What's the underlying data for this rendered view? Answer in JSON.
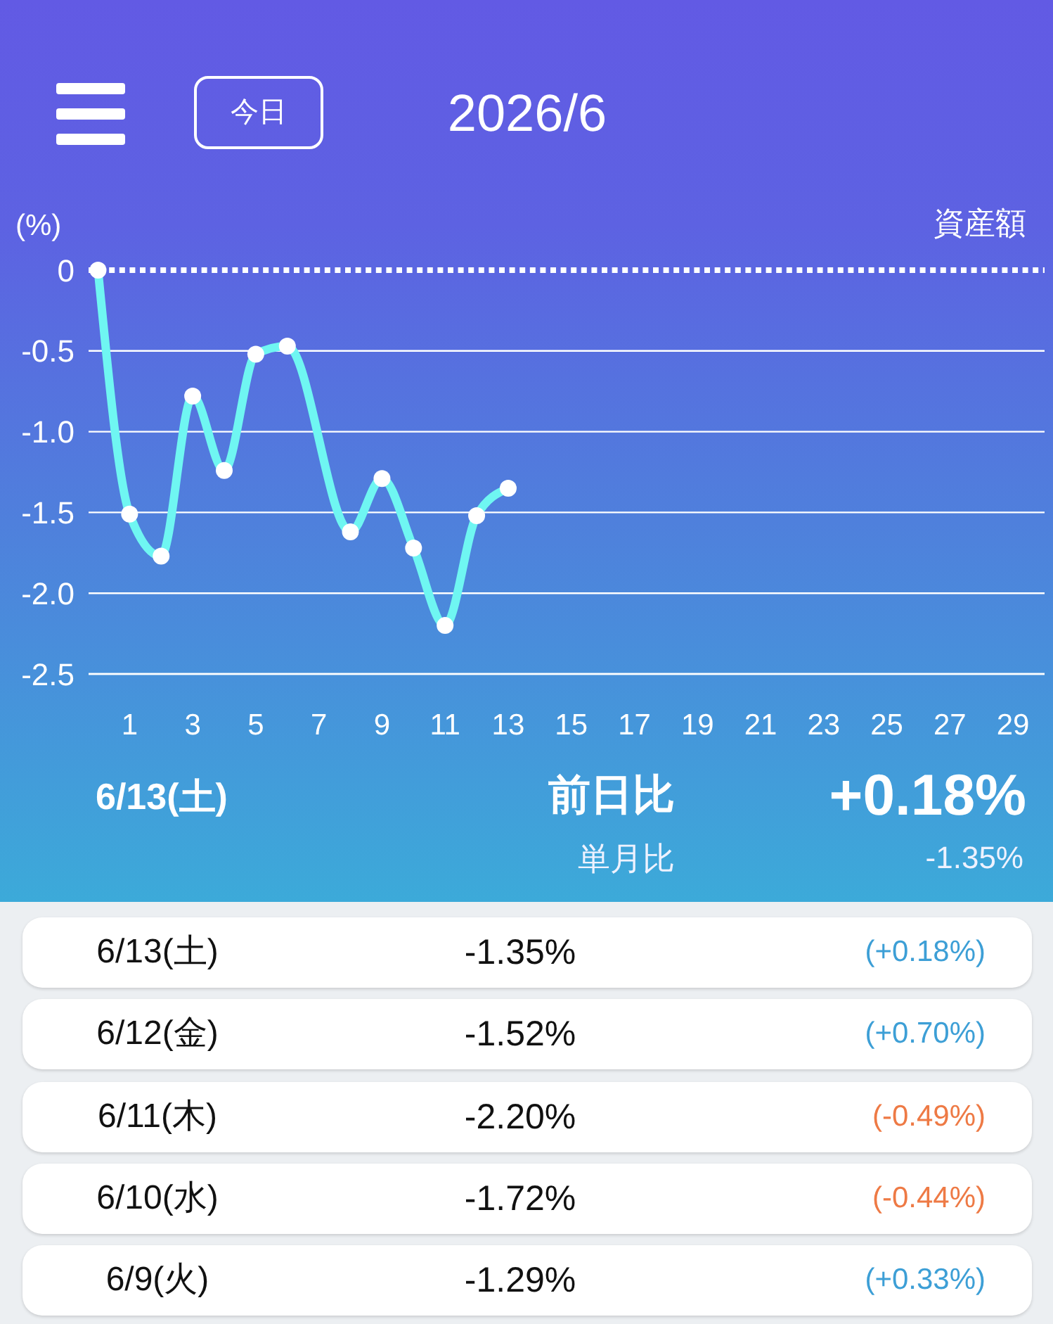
{
  "chart_data": {
    "type": "line",
    "title": "2026/6",
    "ylabel": "(%)",
    "annotations": [
      "今日",
      "資産額",
      "6/13(土)",
      "前日比",
      "+0.18%",
      "単月比",
      "-1.35%",
      "6/13(土)",
      "-1.35%",
      "(+0.18%)",
      "6/12(金)",
      "-1.52%",
      "(+0.70%)",
      "6/11(木)",
      "-2.20%",
      "(-0.49%)",
      "6/10(水)",
      "-1.72%",
      "(-0.44%)",
      "6/9(火)",
      "-1.29%",
      "(+0.33%)"
    ],
    "x": [
      0,
      1,
      2,
      3,
      4,
      5,
      6,
      8,
      9,
      10,
      11,
      12,
      13
    ],
    "series": [
      {
        "color": "#6ff6f2",
        "values": [
          0,
          -1.51,
          -1.77,
          -0.78,
          -1.24,
          -0.52,
          -0.47,
          -1.62,
          -1.29,
          -1.72,
          -2.2,
          -1.52,
          -1.35
        ]
      }
    ],
    "xlim": [
      -0.3,
      30
    ],
    "xticks": [
      1,
      3,
      5,
      7,
      9,
      11,
      13,
      15,
      17,
      19,
      21,
      23,
      25,
      27,
      29
    ],
    "ylim": [
      -2.5,
      0
    ],
    "yticks": [
      0,
      -0.5,
      {
        "value": -1,
        "label": "-1.0"
      },
      -1.5,
      {
        "value": -2,
        "label": "-2.0"
      },
      -2.5
    ],
    "grid": "y",
    "marker": "circle",
    "line_style": "solid",
    "ref_lines": [
      {
        "axis": "y",
        "value": 0,
        "color": "#ffffff",
        "line_style": "dotted"
      }
    ]
  }
}
